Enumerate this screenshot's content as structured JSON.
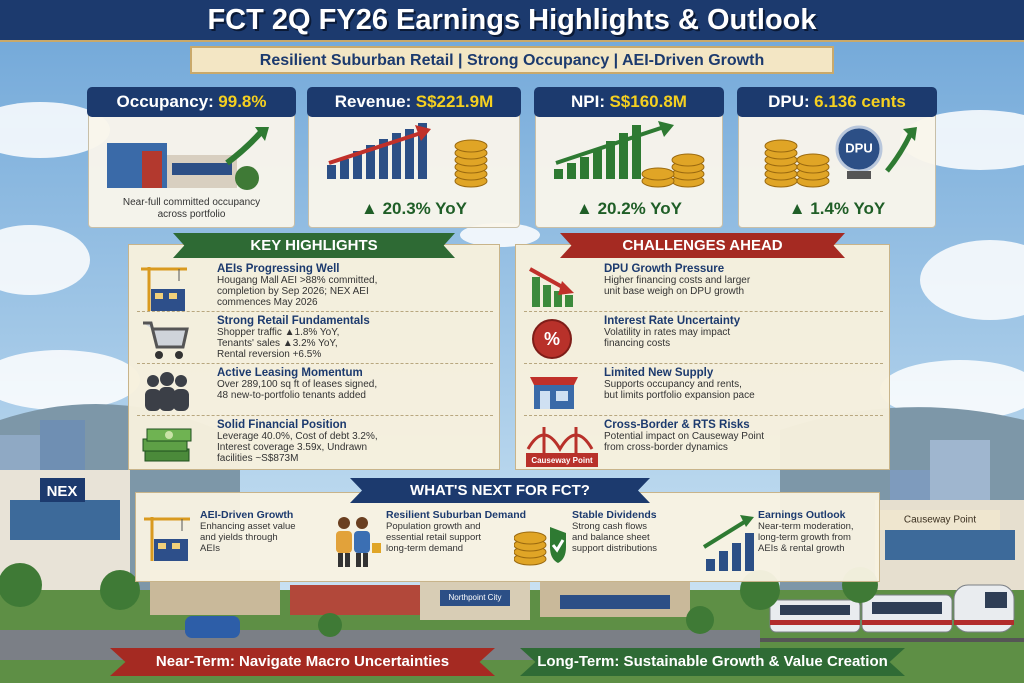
{
  "header": {
    "title": "FCT 2Q FY26 Earnings Highlights & Outlook",
    "subtitle": "Resilient Suburban Retail | Strong Occupancy | AEI-Driven Growth"
  },
  "kpis": [
    {
      "label": "Occupancy:",
      "value": "99.8%",
      "note": [
        "Near-full committed occupancy",
        "across portfolio"
      ]
    },
    {
      "label": "Revenue:",
      "value": "S$221.9M",
      "change": "▲ 20.3% YoY"
    },
    {
      "label": "NPI:",
      "value": "S$160.8M",
      "change": "▲ 20.2% YoY"
    },
    {
      "label": "DPU:",
      "value": "6.136 cents",
      "change": "▲ 1.4% YoY",
      "icon_label": "DPU"
    }
  ],
  "key_highlights": {
    "title": "KEY HIGHLIGHTS",
    "items": [
      {
        "title": "AEIs Progressing Well",
        "lines": [
          "Hougang Mall AEI >88% committed,",
          "completion by Sep 2026; NEX AEI",
          "commences May 2026"
        ]
      },
      {
        "title": "Strong Retail Fundamentals",
        "lines": [
          "Shopper traffic ▲1.8% YoY,",
          "Tenants' sales ▲3.2% YoY,",
          "Rental reversion +6.5%"
        ]
      },
      {
        "title": "Active Leasing Momentum",
        "lines": [
          "Over 289,100 sq ft of leases signed,",
          "48 new-to-portfolio tenants added"
        ]
      },
      {
        "title": "Solid Financial Position",
        "lines": [
          "Leverage 40.0%, Cost of debt 3.2%,",
          "Interest coverage 3.59x, Undrawn",
          "facilities ~S$873M"
        ]
      }
    ]
  },
  "challenges": {
    "title": "CHALLENGES AHEAD",
    "items": [
      {
        "title": "DPU Growth Pressure",
        "lines": [
          "Higher financing costs and larger",
          "unit base weigh on DPU growth"
        ]
      },
      {
        "title": "Interest Rate Uncertainty",
        "lines": [
          "Volatility in rates may impact",
          "financing costs"
        ],
        "icon_label": "%"
      },
      {
        "title": "Limited New Supply",
        "lines": [
          "Supports occupancy and rents,",
          "but limits portfolio expansion pace"
        ]
      },
      {
        "title": "Cross-Border & RTS Risks",
        "lines": [
          "Potential impact on Causeway Point",
          "from cross-border dynamics"
        ],
        "icon_label": "Causeway Point"
      }
    ]
  },
  "whats_next": {
    "title": "WHAT'S NEXT FOR FCT?",
    "items": [
      {
        "title": "AEI-Driven Growth",
        "lines": [
          "Enhancing asset value",
          "and yields through",
          "AEIs"
        ]
      },
      {
        "title": "Resilient Suburban Demand",
        "lines": [
          "Population growth and",
          "essential retail support",
          "long-term demand"
        ]
      },
      {
        "title": "Stable Dividends",
        "lines": [
          "Strong cash flows",
          "and balance sheet",
          "support distributions"
        ]
      },
      {
        "title": "Earnings Outlook",
        "lines": [
          "Near-term moderation,",
          "long-term growth from",
          "AEIs & rental growth"
        ]
      }
    ]
  },
  "scene": {
    "labels": [
      "NEX",
      "Northpoint City",
      "Causeway Point"
    ]
  },
  "footer": {
    "near_term": "Near-Term: Navigate Macro Uncertainties",
    "long_term": "Long-Term: Sustainable Growth & Value Creation"
  }
}
